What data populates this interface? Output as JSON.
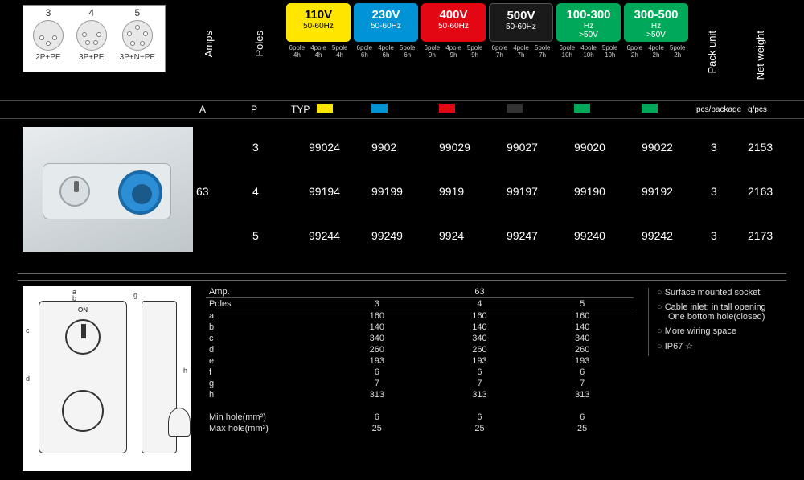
{
  "poleDiagram": {
    "cols": [
      {
        "num": "3",
        "label": "2P+PE",
        "pins": 3
      },
      {
        "num": "4",
        "label": "3P+PE",
        "pins": 4
      },
      {
        "num": "5",
        "label": "3P+N+PE",
        "pins": 5
      }
    ]
  },
  "headers": {
    "amps": "Amps",
    "poles": "Poles",
    "pack": "Pack unit",
    "net": "Net weight",
    "A": "A",
    "P": "P",
    "TYP": "TYP",
    "pkUnit": "pcs/package",
    "wUnit": "g/pcs"
  },
  "voltBoxes": [
    {
      "title": "110V",
      "sub": "50-60Hz",
      "bg": "#ffe600",
      "fg": "#000"
    },
    {
      "title": "230V",
      "sub": "50-60Hz",
      "bg": "#0093d6",
      "fg": "#fff"
    },
    {
      "title": "400V",
      "sub": "50-60Hz",
      "bg": "#e30613",
      "fg": "#fff"
    },
    {
      "title": "500V",
      "sub": "50-60Hz",
      "bg": "#1a1a1a",
      "fg": "#fff"
    },
    {
      "title": "100-300",
      "sub": "Hz",
      "extra": ">50V",
      "bg": "#00a859",
      "fg": "#fff"
    },
    {
      "title": "300-500",
      "sub": "Hz",
      "extra": ">50V",
      "bg": "#00a859",
      "fg": "#fff"
    }
  ],
  "subLabels": [
    [
      "6pole 4h",
      "4pole 4h",
      "5pole 4h"
    ],
    [
      "6pole 6h",
      "4pole 6h",
      "5pole 6h"
    ],
    [
      "6pole 9h",
      "4pole 9h",
      "5pole 9h"
    ],
    [
      "6pole 7h",
      "4pole 7h",
      "5pole 7h"
    ],
    [
      "6pole 10h",
      "4pole 10h",
      "5pole 10h"
    ],
    [
      "6pole 2h",
      "4pole 2h",
      "5pole 2h"
    ]
  ],
  "swatch": [
    "#ffe600",
    "#0093d6",
    "#e30613",
    "#333333",
    "#00a859",
    "#00a859"
  ],
  "amp": "63",
  "rows": [
    {
      "poles": "3",
      "codes": [
        "99024",
        "9902",
        "99029",
        "99027",
        "99020",
        "99022"
      ],
      "pk": "3",
      "wt": "2153"
    },
    {
      "poles": "4",
      "codes": [
        "99194",
        "99199",
        "9919",
        "99197",
        "99190",
        "99192"
      ],
      "pk": "3",
      "wt": "2163"
    },
    {
      "poles": "5",
      "codes": [
        "99244",
        "99249",
        "9924",
        "99247",
        "99240",
        "99242"
      ],
      "pk": "3",
      "wt": "2173"
    }
  ],
  "dims": {
    "ampLabel": "Amp.",
    "ampVal": "63",
    "polesLabel": "Poles",
    "cols": [
      "3",
      "4",
      "5"
    ],
    "rows": [
      {
        "k": "a",
        "v": [
          "160",
          "160",
          "160"
        ]
      },
      {
        "k": "b",
        "v": [
          "140",
          "140",
          "140"
        ]
      },
      {
        "k": "c",
        "v": [
          "340",
          "340",
          "340"
        ]
      },
      {
        "k": "d",
        "v": [
          "260",
          "260",
          "260"
        ]
      },
      {
        "k": "e",
        "v": [
          "193",
          "193",
          "193"
        ]
      },
      {
        "k": "f",
        "v": [
          "6",
          "6",
          "6"
        ]
      },
      {
        "k": "g",
        "v": [
          "7",
          "7",
          "7"
        ]
      },
      {
        "k": "h",
        "v": [
          "313",
          "313",
          "313"
        ]
      }
    ],
    "minSec": {
      "k": "Min hole(mm²)",
      "v": [
        "6",
        "6",
        "6"
      ]
    },
    "maxSec": {
      "k": "Max hole(mm²)",
      "v": [
        "25",
        "25",
        "25"
      ]
    }
  },
  "notes": [
    "Surface mounted socket",
    "Cable inlet: in tall opening",
    "More wiring space",
    "IP67 ☆"
  ],
  "noteSub": "One bottom hole(closed)"
}
